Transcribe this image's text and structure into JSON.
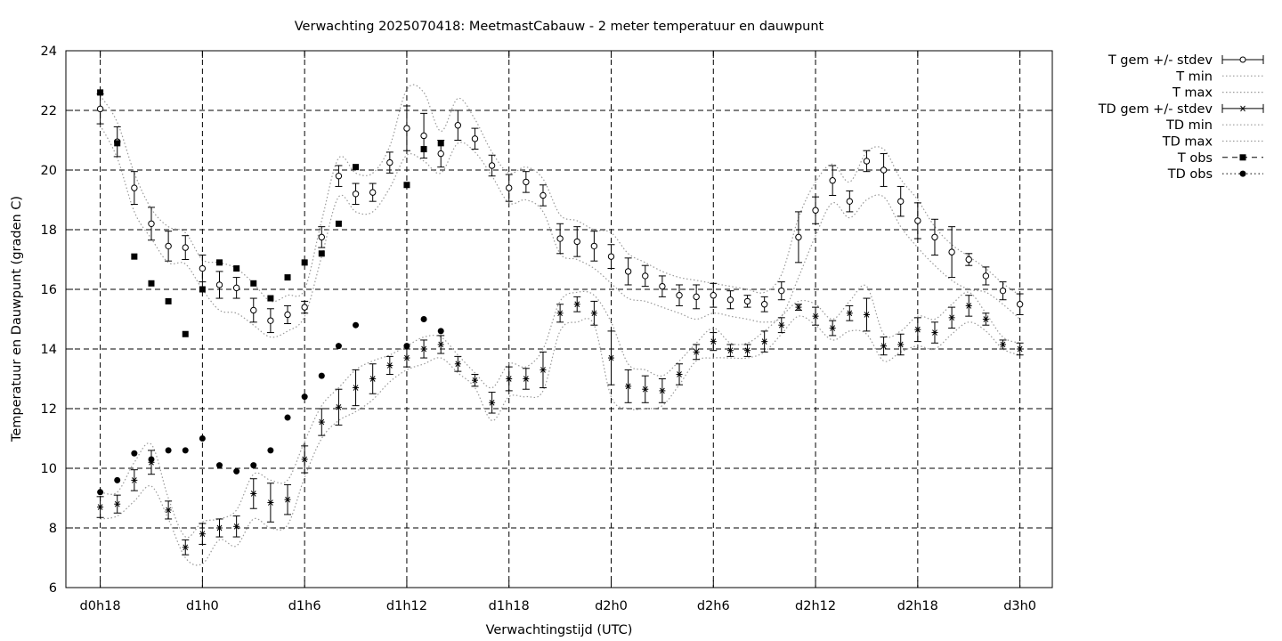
{
  "chart_data": {
    "type": "line",
    "title": "Verwachting 2025070418: MeetmastCabauw - 2 meter temperatuur en dauwpunt",
    "xlabel": "Verwachtingstijd (UTC)",
    "ylabel": "Temperatuur en Dauwpunt (graden C)",
    "xlim": [
      -0.5,
      56.5
    ],
    "ylim": [
      6,
      24
    ],
    "x_unit": "hours after d0h18 (forecast start 2025070418)",
    "x_ticks": [
      {
        "x": 0,
        "label": "d0h18"
      },
      {
        "x": 6,
        "label": "d1h0"
      },
      {
        "x": 12,
        "label": "d1h6"
      },
      {
        "x": 18,
        "label": "d1h12"
      },
      {
        "x": 24,
        "label": "d1h18"
      },
      {
        "x": 30,
        "label": "d2h0"
      },
      {
        "x": 36,
        "label": "d2h6"
      },
      {
        "x": 42,
        "label": "d2h12"
      },
      {
        "x": 48,
        "label": "d2h18"
      },
      {
        "x": 54,
        "label": "d3h0"
      }
    ],
    "y_ticks": [
      6,
      8,
      10,
      12,
      14,
      16,
      18,
      20,
      22,
      24
    ],
    "grid": true,
    "legend_position": "right",
    "legend": [
      "T gem +/- stdev",
      "T min",
      "T max",
      "TD gem +/- stdev",
      "TD min",
      "TD max",
      "T obs",
      "TD obs"
    ],
    "x": [
      0,
      1,
      2,
      3,
      4,
      5,
      6,
      7,
      8,
      9,
      10,
      11,
      12,
      13,
      14,
      15,
      16,
      17,
      18,
      19,
      20,
      21,
      22,
      23,
      24,
      25,
      26,
      27,
      28,
      29,
      30,
      31,
      32,
      33,
      34,
      35,
      36,
      37,
      38,
      39,
      40,
      41,
      42,
      43,
      44,
      45,
      46,
      47,
      48,
      49,
      50,
      51,
      52,
      53,
      54
    ],
    "series": [
      {
        "name": "T gem +/- stdev",
        "values": [
          22.05,
          20.95,
          19.4,
          18.2,
          17.45,
          17.4,
          16.7,
          16.15,
          16.05,
          15.3,
          14.95,
          15.15,
          15.4,
          17.75,
          19.8,
          19.2,
          19.25,
          20.25,
          21.4,
          21.15,
          20.55,
          21.5,
          21.05,
          20.15,
          19.4,
          19.6,
          19.15,
          17.7,
          17.6,
          17.45,
          17.1,
          16.6,
          16.45,
          16.1,
          15.8,
          15.75,
          15.8,
          15.65,
          15.6,
          15.5,
          15.95,
          17.75,
          18.65,
          19.65,
          18.95,
          20.3,
          20.0,
          18.95,
          18.3,
          17.75,
          17.25,
          17.0,
          16.45,
          15.95,
          15.5
        ],
        "stdev": [
          0.5,
          0.5,
          0.55,
          0.55,
          0.5,
          0.4,
          0.45,
          0.45,
          0.35,
          0.4,
          0.4,
          0.3,
          0.2,
          0.35,
          0.35,
          0.35,
          0.3,
          0.35,
          0.75,
          0.75,
          0.45,
          0.5,
          0.35,
          0.35,
          0.45,
          0.35,
          0.35,
          0.5,
          0.5,
          0.5,
          0.4,
          0.45,
          0.35,
          0.35,
          0.35,
          0.4,
          0.4,
          0.3,
          0.2,
          0.25,
          0.3,
          0.85,
          0.45,
          0.5,
          0.35,
          0.35,
          0.55,
          0.5,
          0.6,
          0.6,
          0.85,
          0.2,
          0.3,
          0.3,
          0.35
        ]
      },
      {
        "name": "T min",
        "values": [
          21.5,
          20.4,
          18.6,
          17.7,
          16.9,
          16.85,
          16.0,
          15.3,
          15.2,
          14.8,
          14.4,
          14.6,
          15.1,
          17.1,
          19.1,
          18.6,
          18.6,
          19.4,
          20.5,
          20.3,
          19.9,
          20.9,
          20.6,
          19.8,
          18.9,
          19.0,
          18.6,
          17.2,
          17.0,
          16.7,
          16.2,
          15.7,
          15.6,
          15.4,
          15.2,
          15.0,
          15.2,
          15.1,
          15.0,
          14.9,
          15.1,
          16.4,
          17.8,
          18.9,
          18.4,
          19.0,
          19.1,
          18.1,
          17.4,
          16.8,
          16.3,
          16.0,
          15.9,
          15.5,
          15.0
        ]
      },
      {
        "name": "T max",
        "values": [
          22.5,
          21.6,
          19.9,
          18.7,
          18.1,
          17.9,
          17.0,
          16.9,
          16.7,
          16.2,
          15.6,
          15.8,
          16.0,
          18.3,
          20.4,
          19.9,
          19.9,
          20.8,
          22.7,
          22.6,
          21.3,
          22.4,
          21.7,
          20.6,
          19.9,
          20.1,
          19.7,
          18.5,
          18.3,
          18.0,
          17.9,
          17.2,
          16.9,
          16.6,
          16.4,
          16.3,
          16.2,
          16.1,
          16.0,
          15.9,
          16.5,
          18.4,
          19.6,
          20.2,
          19.6,
          20.6,
          20.7,
          19.7,
          19.0,
          18.1,
          17.5,
          17.1,
          16.7,
          16.2,
          15.8
        ]
      },
      {
        "name": "TD gem +/- stdev",
        "values": [
          8.7,
          8.8,
          9.6,
          10.2,
          8.6,
          7.35,
          7.8,
          8.0,
          8.05,
          9.15,
          8.85,
          8.95,
          10.3,
          11.55,
          12.05,
          12.7,
          13.0,
          13.45,
          13.7,
          14.0,
          14.15,
          13.5,
          12.95,
          12.2,
          13.0,
          13.0,
          13.3,
          15.2,
          15.5,
          15.2,
          13.7,
          12.75,
          12.65,
          12.6,
          13.15,
          13.9,
          14.25,
          13.95,
          13.95,
          14.25,
          14.8,
          15.4,
          15.1,
          14.7,
          15.2,
          15.15,
          14.1,
          14.15,
          14.65,
          14.55,
          15.05,
          15.45,
          15.0,
          14.15,
          14.0
        ],
        "stdev": [
          0.35,
          0.3,
          0.35,
          0.4,
          0.3,
          0.25,
          0.35,
          0.3,
          0.35,
          0.5,
          0.65,
          0.5,
          0.45,
          0.45,
          0.6,
          0.6,
          0.5,
          0.3,
          0.3,
          0.3,
          0.3,
          0.25,
          0.2,
          0.35,
          0.4,
          0.35,
          0.6,
          0.3,
          0.25,
          0.4,
          0.9,
          0.55,
          0.45,
          0.4,
          0.35,
          0.25,
          0.3,
          0.2,
          0.2,
          0.35,
          0.25,
          0.1,
          0.3,
          0.25,
          0.25,
          0.55,
          0.3,
          0.35,
          0.4,
          0.35,
          0.35,
          0.35,
          0.2,
          0.15,
          0.2
        ]
      },
      {
        "name": "TD min",
        "values": [
          8.3,
          8.4,
          8.9,
          9.4,
          8.3,
          7.0,
          6.8,
          7.6,
          7.4,
          8.3,
          8.0,
          8.1,
          9.7,
          11.0,
          11.6,
          11.9,
          12.3,
          12.9,
          13.3,
          13.5,
          13.7,
          13.2,
          12.7,
          11.6,
          12.4,
          12.4,
          12.6,
          14.6,
          14.9,
          14.8,
          12.4,
          12.0,
          12.0,
          12.1,
          12.8,
          13.6,
          13.7,
          13.7,
          13.7,
          13.9,
          14.5,
          15.1,
          14.8,
          14.3,
          14.6,
          14.5,
          13.6,
          13.9,
          14.1,
          14.0,
          14.5,
          14.9,
          14.6,
          14.0,
          13.8
        ]
      },
      {
        "name": "TD max",
        "values": [
          9.2,
          9.2,
          10.2,
          10.8,
          9.0,
          7.7,
          8.2,
          8.3,
          8.6,
          9.8,
          9.6,
          9.6,
          10.9,
          12.1,
          12.7,
          13.3,
          13.6,
          13.8,
          14.1,
          14.4,
          14.4,
          13.8,
          13.2,
          12.7,
          13.5,
          13.4,
          14.0,
          15.6,
          15.9,
          15.8,
          14.9,
          13.5,
          13.3,
          13.1,
          13.6,
          14.2,
          14.7,
          14.2,
          14.2,
          14.6,
          15.1,
          15.6,
          15.5,
          15.0,
          15.6,
          16.1,
          14.5,
          14.6,
          15.1,
          15.0,
          15.5,
          15.9,
          15.2,
          14.4,
          14.2
        ]
      },
      {
        "name": "T obs",
        "x": [
          0,
          1,
          2,
          3,
          4,
          5,
          6,
          7,
          8,
          9,
          10,
          11,
          12,
          13,
          14,
          15,
          16,
          17,
          18,
          19,
          20
        ],
        "values": [
          22.6,
          20.9,
          17.1,
          16.2,
          15.6,
          14.5,
          16.0,
          16.9,
          16.7,
          16.2,
          15.7,
          16.4,
          16.9,
          17.2,
          18.2,
          20.1,
          null,
          null,
          19.5,
          20.7,
          20.9
        ]
      },
      {
        "name": "TD obs",
        "x": [
          0,
          1,
          2,
          3,
          4,
          5,
          6,
          7,
          8,
          9,
          10,
          11,
          12,
          13,
          14,
          15,
          16,
          17,
          18,
          19,
          20
        ],
        "values": [
          9.2,
          9.6,
          10.5,
          10.3,
          10.6,
          10.6,
          11.0,
          10.1,
          9.9,
          10.1,
          10.6,
          11.7,
          12.4,
          13.1,
          14.1,
          14.8,
          null,
          null,
          14.1,
          15.0,
          14.6
        ]
      }
    ]
  }
}
